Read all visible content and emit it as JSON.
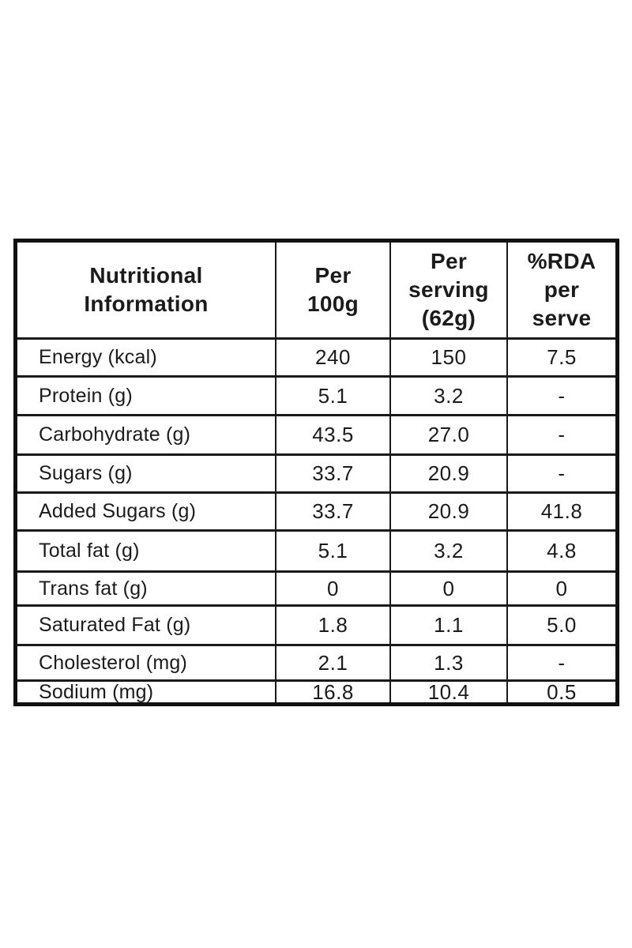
{
  "page": {
    "background_color": "#ffffff"
  },
  "table": {
    "border_color": "#111111",
    "text_color": "#1b1b1b",
    "header": {
      "columns": [
        "Nutritional\nInformation",
        "Per\n100g",
        "Per\nserving\n(62g)",
        "%RDA\nper\nserve"
      ]
    },
    "rows": [
      {
        "label": "Energy (kcal)",
        "per_100g": "240",
        "per_serving": "150",
        "rda_per_serve": "7.5"
      },
      {
        "label": "Protein (g)",
        "per_100g": "5.1",
        "per_serving": "3.2",
        "rda_per_serve": "-"
      },
      {
        "label": "Carbohydrate (g)",
        "per_100g": "43.5",
        "per_serving": "27.0",
        "rda_per_serve": "-"
      },
      {
        "label": "Sugars (g)",
        "per_100g": "33.7",
        "per_serving": "20.9",
        "rda_per_serve": "-"
      },
      {
        "label": "Added Sugars (g)",
        "per_100g": "33.7",
        "per_serving": "20.9",
        "rda_per_serve": "41.8"
      },
      {
        "label": "Total fat (g)",
        "per_100g": "5.1",
        "per_serving": "3.2",
        "rda_per_serve": "4.8"
      },
      {
        "label": "Trans fat (g)",
        "per_100g": "0",
        "per_serving": "0",
        "rda_per_serve": "0"
      },
      {
        "label": "Saturated Fat (g)",
        "per_100g": "1.8",
        "per_serving": "1.1",
        "rda_per_serve": "5.0"
      },
      {
        "label": "Cholesterol (mg)",
        "per_100g": "2.1",
        "per_serving": "1.3",
        "rda_per_serve": "-"
      },
      {
        "label": "Sodium (mg)",
        "per_100g": "16.8",
        "per_serving": "10.4",
        "rda_per_serve": "0.5"
      }
    ]
  }
}
